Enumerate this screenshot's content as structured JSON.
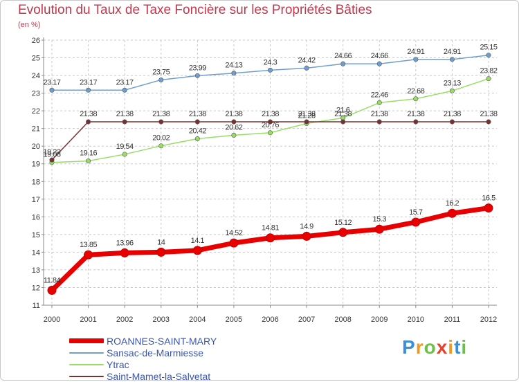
{
  "chart_data": {
    "type": "line",
    "title": "Evolution du Taux de Taxe Foncière sur les Propriétés Bâties",
    "subtitle": "(en %)",
    "x": [
      "2000",
      "2001",
      "2002",
      "2003",
      "2004",
      "2005",
      "2006",
      "2007",
      "2008",
      "2009",
      "2010",
      "2011",
      "2012"
    ],
    "ylim": [
      11,
      26
    ],
    "yticks": [
      "11",
      "12",
      "13",
      "14",
      "15",
      "16",
      "17",
      "18",
      "19",
      "20",
      "21",
      "22",
      "23",
      "24",
      "25",
      "26"
    ],
    "grid": true,
    "series": [
      {
        "name": "ROANNES-SAINT-MARY",
        "color": "#e80000",
        "values": [
          11.84,
          13.85,
          13.96,
          14,
          14.1,
          14.52,
          14.81,
          14.9,
          15.12,
          15.3,
          15.7,
          16.2,
          16.5
        ],
        "labels": [
          "11.84",
          "13.85",
          "13.96",
          "14",
          "14.1",
          "14.52",
          "14.81",
          "14.9",
          "15.12",
          "15.3",
          "15.7",
          "16.2",
          "16.5"
        ]
      },
      {
        "name": "Sansac-de-Marmiesse",
        "color": "#6f9ecf",
        "values": [
          23.17,
          23.17,
          23.17,
          23.75,
          23.99,
          24.13,
          24.3,
          24.42,
          24.66,
          24.66,
          24.91,
          24.91,
          25.15
        ],
        "labels": [
          "23.17",
          "23.17",
          "23.17",
          "23.75",
          "23.99",
          "24.13",
          "24.3",
          "24.42",
          "24.66",
          "24.66",
          "24.91",
          "24.91",
          "25.15"
        ]
      },
      {
        "name": "Ytrac",
        "color": "#99dd66",
        "values": [
          19.08,
          19.16,
          19.54,
          20.02,
          20.42,
          20.62,
          20.76,
          21.28,
          21.6,
          22.46,
          22.68,
          23.13,
          23.82
        ],
        "labels": [
          "19.08",
          "19.16",
          "19.54",
          "20.02",
          "20.42",
          "20.62",
          "20.76",
          "21.28",
          "21.6",
          "22.46",
          "22.68",
          "23.13",
          "23.82"
        ]
      },
      {
        "name": "Saint-Mamet-la-Salvetat",
        "color": "#7a3030",
        "values": [
          19.22,
          21.38,
          21.38,
          21.38,
          21.38,
          21.38,
          21.38,
          21.38,
          21.38,
          21.38,
          21.38,
          21.38,
          21.38
        ],
        "labels": [
          "19.22",
          "21.38",
          "21.38",
          "21.38",
          "21.38",
          "21.38",
          "21.38",
          "21.38",
          "21.38",
          "21.38",
          "21.38",
          "21.38",
          "21.38"
        ]
      }
    ]
  },
  "logo": {
    "letters": [
      "P",
      "r",
      "o",
      "x",
      "i",
      "t",
      "i"
    ],
    "colors": [
      "#3a8fd8",
      "#f29a1f",
      "#6cc04a",
      "#e8402c",
      "#f29a1f",
      "#3a8fd8",
      "#6cc04a"
    ]
  }
}
